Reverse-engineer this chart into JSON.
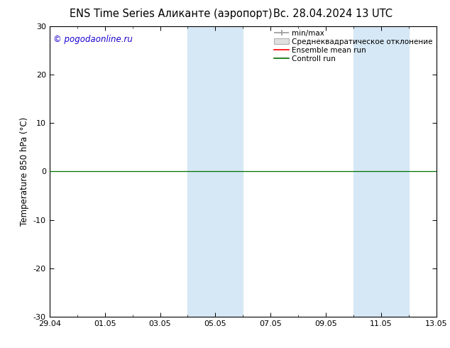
{
  "title_left": "ENS Time Series Аликанте (аэропорт)",
  "title_right": "Вс. 28.04.2024 13 UTC",
  "ylabel": "Temperature 850 hPa (°C)",
  "ylim": [
    -30,
    30
  ],
  "yticks": [
    -30,
    -20,
    -10,
    0,
    10,
    20,
    30
  ],
  "xlim_start": 0,
  "xlim_end": 336,
  "xtick_labels": [
    "29.04",
    "01.05",
    "03.05",
    "05.05",
    "07.05",
    "09.05",
    "11.05",
    "13.05"
  ],
  "xtick_positions": [
    0,
    48,
    96,
    144,
    192,
    240,
    288,
    336
  ],
  "watermark": "© pogodaonline.ru",
  "watermark_color": "#1a00cc",
  "bg_color": "#ffffff",
  "plot_bg_color": "#ffffff",
  "shaded_bands": [
    {
      "start": 120,
      "end": 144
    },
    {
      "start": 144,
      "end": 168
    },
    {
      "start": 264,
      "end": 288
    },
    {
      "start": 288,
      "end": 312
    }
  ],
  "shaded_color": "#d6e8f5",
  "legend_labels": [
    "min/max",
    "Среднеквадратическое отклонение",
    "Ensemble mean run",
    "Controll run"
  ],
  "legend_colors": [
    "#999999",
    "#cccccc",
    "#ff0000",
    "#007000"
  ],
  "title_fontsize": 10.5,
  "axis_fontsize": 8.5,
  "tick_fontsize": 8,
  "legend_fontsize": 7.5
}
